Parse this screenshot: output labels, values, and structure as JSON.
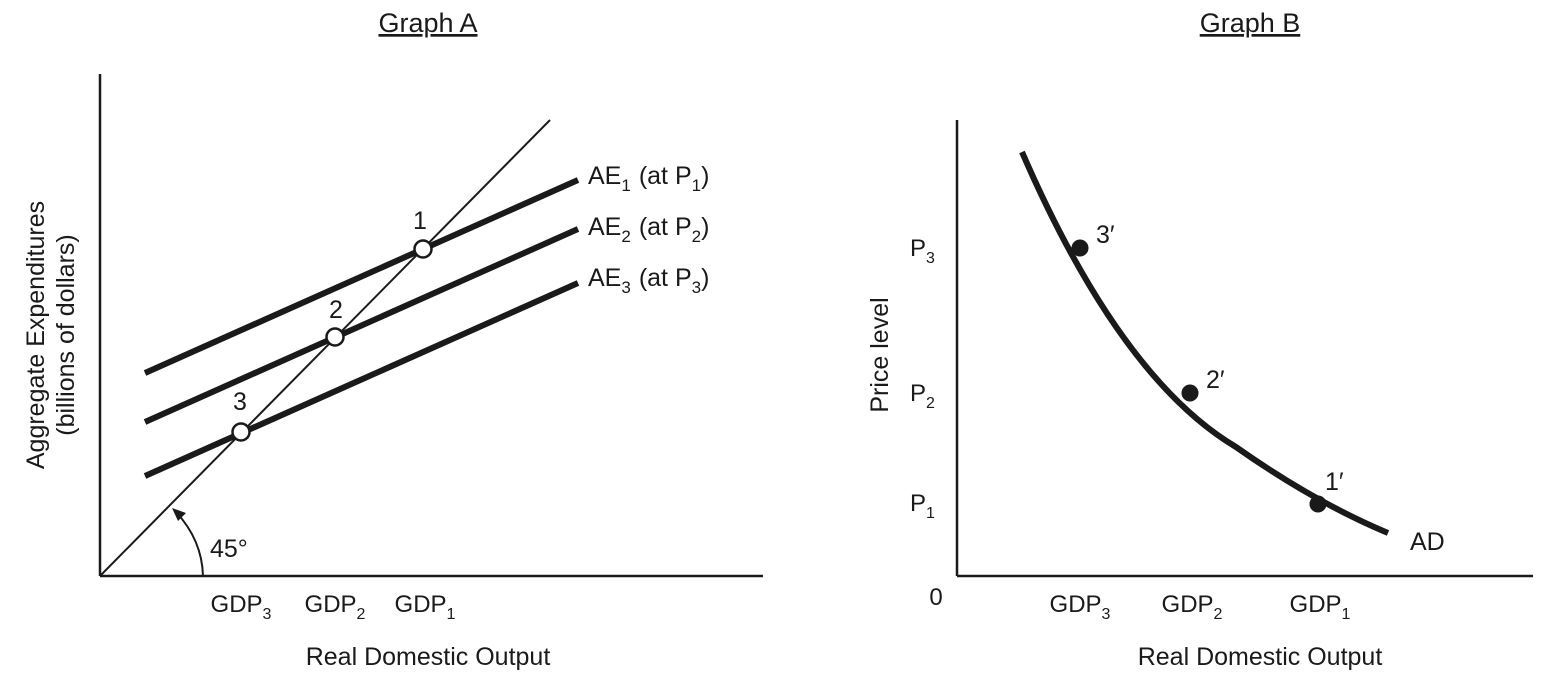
{
  "graph_a": {
    "title": "Graph A",
    "ylabel_line1": "Aggregate Expenditures",
    "ylabel_line2": "(billions of dollars)",
    "xlabel": "Real Domestic Output",
    "angle_label": "45°",
    "ae_lines": [
      {
        "base": "AE",
        "sub": "1",
        "paren_open": "(at P",
        "paren_sub": "1",
        "paren_close": ")"
      },
      {
        "base": "AE",
        "sub": "2",
        "paren_open": "(at P",
        "paren_sub": "2",
        "paren_close": ")"
      },
      {
        "base": "AE",
        "sub": "3",
        "paren_open": "(at P",
        "paren_sub": "3",
        "paren_close": ")"
      }
    ],
    "points": [
      "1",
      "2",
      "3"
    ],
    "x_ticks": [
      {
        "base": "GDP",
        "sub": "3"
      },
      {
        "base": "GDP",
        "sub": "2"
      },
      {
        "base": "GDP",
        "sub": "1"
      }
    ]
  },
  "graph_b": {
    "title": "Graph B",
    "ylabel": "Price level",
    "xlabel": "Real Domestic Output",
    "origin": "0",
    "curve_label": "AD",
    "y_ticks": [
      {
        "base": "P",
        "sub": "3"
      },
      {
        "base": "P",
        "sub": "2"
      },
      {
        "base": "P",
        "sub": "1"
      }
    ],
    "x_ticks": [
      {
        "base": "GDP",
        "sub": "3"
      },
      {
        "base": "GDP",
        "sub": "2"
      },
      {
        "base": "GDP",
        "sub": "1"
      }
    ],
    "points": [
      "3′",
      "2′",
      "1′"
    ]
  }
}
